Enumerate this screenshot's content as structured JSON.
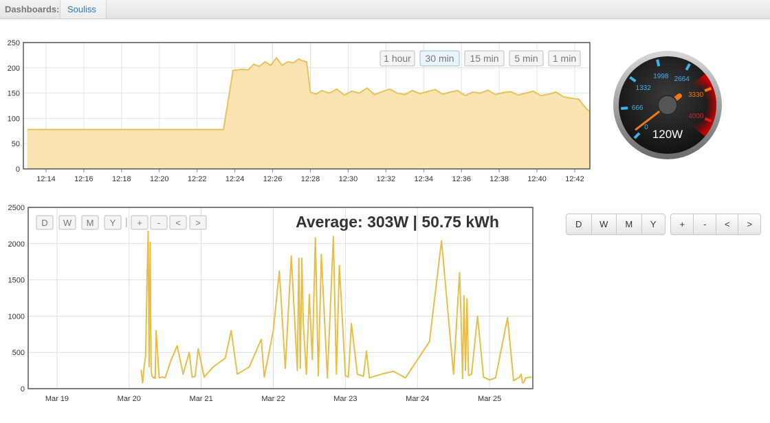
{
  "topbar": {
    "label": "Dashboards:",
    "active_tab": "Souliss"
  },
  "chart_data": [
    {
      "type": "area",
      "title": "",
      "xlabel": "",
      "ylabel": "",
      "ylim": [
        0,
        250
      ],
      "yticks": [
        0,
        50,
        100,
        150,
        200,
        250
      ],
      "xticks": [
        "12:14",
        "12:16",
        "12:18",
        "12:20",
        "12:22",
        "12:24",
        "12:26",
        "12:28",
        "12:30",
        "12:32",
        "12:34",
        "12:36",
        "12:38",
        "12:40",
        "12:42"
      ],
      "grid": true,
      "color": "#e8c25a",
      "fill": "#f9e3b0",
      "x": [
        "12:13",
        "12:14",
        "12:16",
        "12:18",
        "12:20",
        "12:22",
        "12:23",
        "12:23.4",
        "12:23.9",
        "12:24.4",
        "12:24.7",
        "12:25",
        "12:25.3",
        "12:25.6",
        "12:25.9",
        "12:26.2",
        "12:26.5",
        "12:26.8",
        "12:27.1",
        "12:27.4",
        "12:27.5",
        "12:27.8",
        "12:28",
        "12:28.3",
        "12:28.6",
        "12:29",
        "12:29.4",
        "12:29.8",
        "12:30.2",
        "12:30.6",
        "12:31",
        "12:31.4",
        "12:31.8",
        "12:32.2",
        "12:32.6",
        "12:33",
        "12:33.4",
        "12:33.8",
        "12:34.2",
        "12:34.6",
        "12:35",
        "12:35.4",
        "12:35.8",
        "12:36.2",
        "12:36.6",
        "12:37",
        "12:37.4",
        "12:37.8",
        "12:38.2",
        "12:38.6",
        "12:39",
        "12:39.4",
        "12:39.8",
        "12:40.2",
        "12:40.6",
        "12:41",
        "12:41.4",
        "12:41.8",
        "12:42.2",
        "12:42.6",
        "12:42.8"
      ],
      "values": [
        78,
        78,
        78,
        78,
        78,
        78,
        78,
        78,
        195,
        197,
        196,
        207,
        203,
        212,
        205,
        220,
        205,
        212,
        210,
        218,
        215,
        212,
        152,
        148,
        155,
        150,
        158,
        146,
        154,
        150,
        160,
        147,
        153,
        158,
        150,
        147,
        155,
        149,
        153,
        157,
        148,
        152,
        155,
        145,
        152,
        150,
        156,
        147,
        151,
        153,
        146,
        150,
        154,
        145,
        148,
        152,
        143,
        140,
        138,
        120,
        113
      ]
    },
    {
      "type": "line",
      "title": "Average: 303W | 50.75 kWh",
      "xlabel": "",
      "ylabel": "",
      "ylim": [
        0,
        2500
      ],
      "yticks": [
        0,
        500,
        1000,
        1500,
        2000,
        2500
      ],
      "xticks": [
        "Mar 19",
        "Mar 20",
        "Mar 21",
        "Mar 22",
        "Mar 23",
        "Mar 24",
        "Mar 25"
      ],
      "grid": true,
      "color": "#e8be48",
      "x": [
        "Mar 20 04:00",
        "Mar 20 04:30",
        "Mar 20 05:00",
        "Mar 20 05:30",
        "Mar 20 06:00",
        "Mar 20 06:20",
        "Mar 20 06:40",
        "Mar 20 07:00",
        "Mar 20 07:20",
        "Mar 20 07:40",
        "Mar 20 08:00",
        "Mar 20 08:20",
        "Mar 20 08:40",
        "Mar 20 09:00",
        "Mar 20 10:00",
        "Mar 20 11:00",
        "Mar 20 12:00",
        "Mar 20 14:00",
        "Mar 20 16:00",
        "Mar 20 18:00",
        "Mar 20 20:00",
        "Mar 20 21:00",
        "Mar 20 22:00",
        "Mar 20 23:00",
        "Mar 21 01:00",
        "Mar 21 04:00",
        "Mar 21 08:00",
        "Mar 21 10:00",
        "Mar 21 12:00",
        "Mar 21 16:00",
        "Mar 21 20:00",
        "Mar 21 21:00",
        "Mar 22 00:00",
        "Mar 22 02:00",
        "Mar 22 04:00",
        "Mar 22 06:00",
        "Mar 22 08:00",
        "Mar 22 08:30",
        "Mar 22 09:00",
        "Mar 22 09:30",
        "Mar 22 10:00",
        "Mar 22 11:00",
        "Mar 22 12:00",
        "Mar 22 13:00",
        "Mar 22 14:00",
        "Mar 22 15:00",
        "Mar 22 16:00",
        "Mar 22 18:00",
        "Mar 22 20:00",
        "Mar 22 21:00",
        "Mar 22 22:00",
        "Mar 23 00:00",
        "Mar 23 01:00",
        "Mar 23 02:00",
        "Mar 23 04:00",
        "Mar 23 06:00",
        "Mar 23 07:00",
        "Mar 23 08:00",
        "Mar 23 12:00",
        "Mar 23 16:00",
        "Mar 23 20:00",
        "Mar 24 00:00",
        "Mar 24 04:00",
        "Mar 24 08:00",
        "Mar 24 12:00",
        "Mar 24 14:00",
        "Mar 24 14:30",
        "Mar 24 15:00",
        "Mar 24 15:30",
        "Mar 24 16:00",
        "Mar 24 16:30",
        "Mar 24 17:00",
        "Mar 24 18:00",
        "Mar 24 20:00",
        "Mar 24 22:00",
        "Mar 25 00:00",
        "Mar 25 02:00",
        "Mar 25 06:00",
        "Mar 25 08:00",
        "Mar 25 10:00",
        "Mar 25 10:30",
        "Mar 25 11:00",
        "Mar 25 11:30",
        "Mar 25 12:00",
        "Mar 25 14:00"
      ],
      "values": [
        260,
        80,
        300,
        450,
        1580,
        2170,
        300,
        2020,
        250,
        170,
        150,
        160,
        140,
        800,
        150,
        160,
        150,
        400,
        590,
        200,
        500,
        160,
        170,
        550,
        160,
        300,
        420,
        800,
        200,
        300,
        680,
        160,
        800,
        1620,
        280,
        1830,
        250,
        1800,
        280,
        1800,
        900,
        200,
        1300,
        400,
        2080,
        180,
        1850,
        150,
        2100,
        200,
        1700,
        180,
        160,
        900,
        200,
        170,
        520,
        150,
        200,
        240,
        150,
        400,
        650,
        2040,
        200,
        1600,
        1000,
        140,
        1280,
        250,
        1240,
        180,
        200,
        1000,
        160,
        120,
        150,
        980,
        110,
        160,
        200,
        80,
        90,
        150,
        160
      ]
    }
  ],
  "range_buttons": [
    "1 hour",
    "30 min",
    "15 min",
    "5 min",
    "1 min"
  ],
  "range_active": "30 min",
  "nav_buttons": [
    "D",
    "W",
    "M",
    "Y",
    "+",
    "-",
    "<",
    ">"
  ],
  "side_group1": [
    "D",
    "W",
    "M",
    "Y"
  ],
  "side_group2": [
    "+",
    "-",
    "<",
    ">"
  ],
  "gauge": {
    "min": 0,
    "max": 4000,
    "tick_labels": [
      "0",
      "666",
      "1332",
      "1998",
      "2664",
      "3330",
      "4000"
    ],
    "value": 120,
    "value_label": "120W",
    "color_normal": "#3bb4ee",
    "color_warn": "#f07a1a",
    "color_danger": "#e02020"
  }
}
